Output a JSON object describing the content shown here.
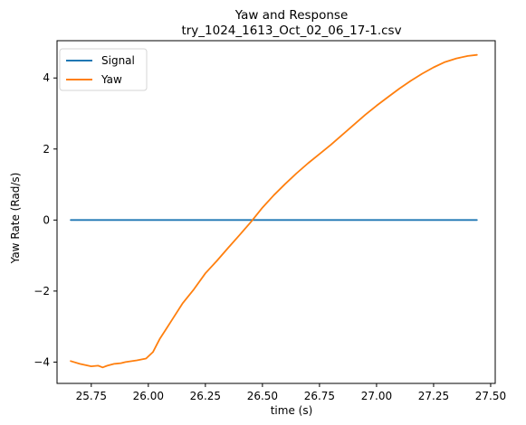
{
  "chart_data": {
    "type": "line",
    "title": "Yaw and Response",
    "subtitle": "try_1024_1613_Oct_02_06_17-1.csv",
    "xlabel": "time (s)",
    "ylabel": "Yaw Rate (Rad/s)",
    "xlim": [
      25.6,
      27.52
    ],
    "ylim": [
      -4.6,
      5.05
    ],
    "xticks": [
      25.75,
      26.0,
      26.25,
      26.5,
      26.75,
      27.0,
      27.25,
      27.5
    ],
    "xtick_labels": [
      "25.75",
      "26.00",
      "26.25",
      "26.50",
      "26.75",
      "27.00",
      "27.25",
      "27.50"
    ],
    "yticks": [
      -4,
      -2,
      0,
      2,
      4
    ],
    "ytick_labels": [
      "−4",
      "−2",
      "0",
      "2",
      "4"
    ],
    "grid": false,
    "legend_position": "top-left",
    "series": [
      {
        "name": "Signal",
        "color": "#1f77b4",
        "x": [
          25.66,
          27.44
        ],
        "y": [
          0,
          0
        ]
      },
      {
        "name": "Yaw",
        "color": "#ff7f0e",
        "x": [
          25.66,
          25.7,
          25.75,
          25.78,
          25.8,
          25.82,
          25.85,
          25.88,
          25.9,
          25.95,
          25.99,
          26.02,
          26.05,
          26.08,
          26.1,
          26.15,
          26.2,
          26.25,
          26.3,
          26.35,
          26.4,
          26.45,
          26.5,
          26.55,
          26.6,
          26.65,
          26.7,
          26.75,
          26.8,
          26.85,
          26.9,
          26.95,
          27.0,
          27.05,
          27.1,
          27.15,
          27.2,
          27.25,
          27.3,
          27.35,
          27.4,
          27.44
        ],
        "y": [
          -3.97,
          -4.05,
          -4.12,
          -4.1,
          -4.15,
          -4.1,
          -4.05,
          -4.03,
          -4.0,
          -3.95,
          -3.9,
          -3.72,
          -3.35,
          -3.05,
          -2.85,
          -2.35,
          -1.95,
          -1.5,
          -1.15,
          -0.78,
          -0.42,
          -0.05,
          0.35,
          0.7,
          1.02,
          1.32,
          1.6,
          1.86,
          2.12,
          2.4,
          2.68,
          2.96,
          3.22,
          3.46,
          3.7,
          3.92,
          4.12,
          4.3,
          4.45,
          4.55,
          4.62,
          4.65
        ]
      }
    ]
  }
}
